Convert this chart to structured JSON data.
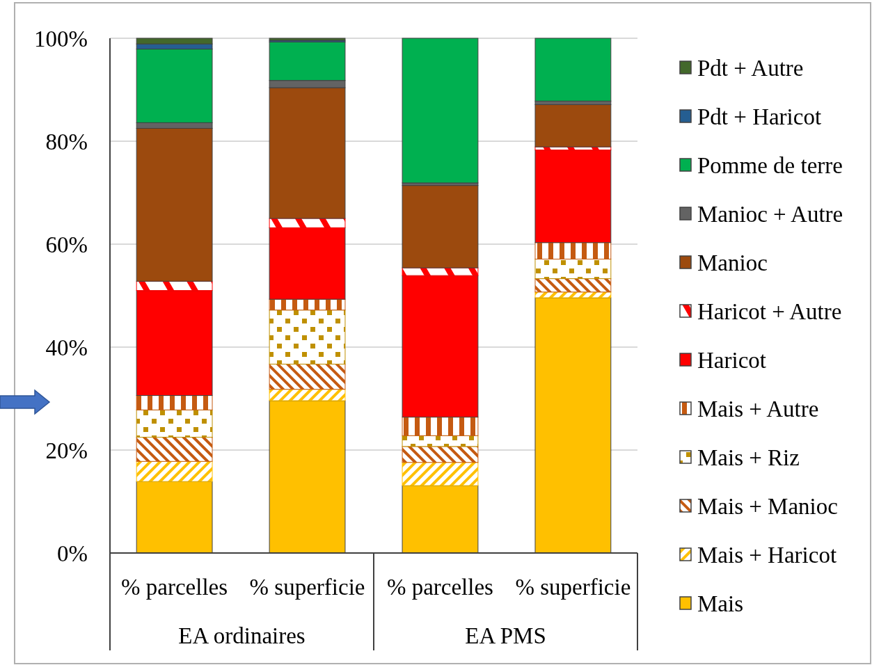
{
  "chart_data": {
    "type": "bar",
    "stacked": true,
    "categories": [
      "% parcelles",
      "% superficie",
      "% parcelles",
      "% superficie"
    ],
    "annotations": [
      "EA ordinaires",
      "EA PMS"
    ],
    "ylim": [
      0,
      100
    ],
    "yticks": [
      {
        "value": 0,
        "label": "0%"
      },
      {
        "value": 20,
        "label": "20%"
      },
      {
        "value": 40,
        "label": "40%"
      },
      {
        "value": 60,
        "label": "60%"
      },
      {
        "value": 80,
        "label": "80%"
      },
      {
        "value": 100,
        "label": "100%"
      }
    ],
    "grid": "y",
    "legend": "right",
    "series": [
      {
        "name": "Mais",
        "color": "#ffc000",
        "values": [
          13.9,
          29.6,
          13.1,
          49.6
        ]
      },
      {
        "name": "Mais + Haricot",
        "color": "#ffc000",
        "values": [
          3.9,
          2.2,
          4.5,
          1.1
        ]
      },
      {
        "name": "Mais + Manioc",
        "color": "#c55a11",
        "values": [
          4.7,
          4.9,
          3.1,
          2.6
        ]
      },
      {
        "name": "Mais + Riz",
        "color": "#bf9000",
        "values": [
          5.3,
          10.5,
          2.1,
          3.8
        ]
      },
      {
        "name": "Mais + Autre",
        "color": "#c55a11",
        "values": [
          2.8,
          2.1,
          3.6,
          3.2
        ]
      },
      {
        "name": "Haricot",
        "color": "#ff0000",
        "values": [
          20.4,
          13.9,
          27.5,
          18.0
        ]
      },
      {
        "name": "Haricot + Autre",
        "color": "#ff0000",
        "values": [
          1.8,
          1.8,
          1.5,
          0.6
        ]
      },
      {
        "name": "Manioc",
        "color": "#9c4a0e",
        "values": [
          29.7,
          25.4,
          16.0,
          8.2
        ]
      },
      {
        "name": "Manioc + Autre",
        "color": "#636363",
        "values": [
          1.1,
          1.4,
          0.5,
          0.7
        ]
      },
      {
        "name": "Pomme de terre",
        "color": "#00b050",
        "values": [
          14.3,
          7.5,
          28.1,
          12.2
        ]
      },
      {
        "name": "Pdt + Haricot",
        "color": "#255e91",
        "values": [
          1.0,
          0.3,
          0,
          0
        ]
      },
      {
        "name": "Pdt + Autre",
        "color": "#43682b",
        "values": [
          1.1,
          0.4,
          0,
          0
        ]
      }
    ]
  }
}
